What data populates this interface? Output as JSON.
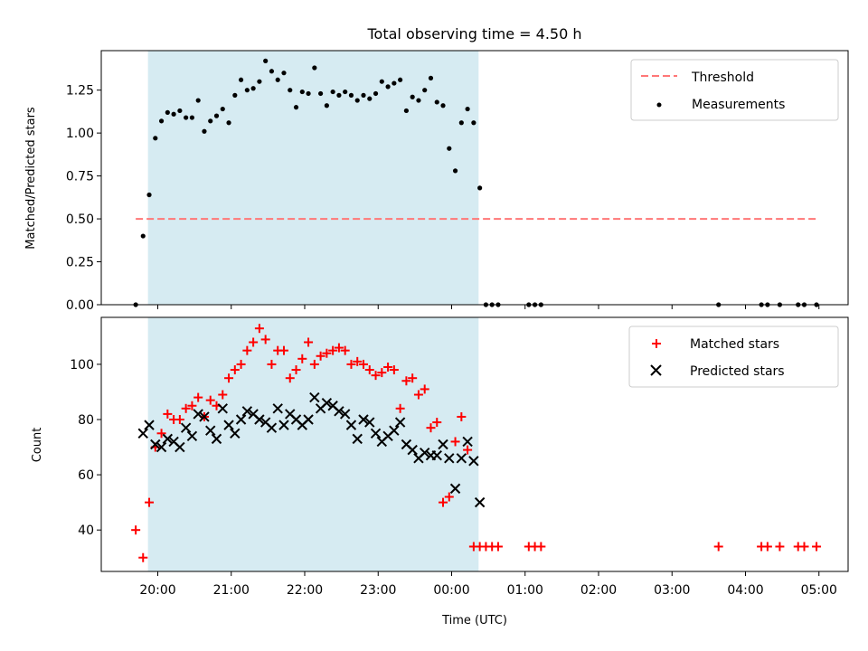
{
  "chart_data": [
    {
      "type": "scatter",
      "title": "Total observing time = 4.50 h",
      "ylabel": "Matched/Predicted stars",
      "ylim": [
        0,
        1.48
      ],
      "yticks": [
        0.0,
        0.25,
        0.5,
        0.75,
        1.0,
        1.25
      ],
      "ytick_labels": [
        "0.00",
        "0.25",
        "0.50",
        "0.75",
        "1.00",
        "1.25"
      ],
      "grid": false,
      "legend": {
        "placement": "top-right",
        "entries": [
          "Threshold",
          "Measurements"
        ]
      },
      "observing_window": {
        "start": "19:52",
        "end": "00:22",
        "color": "#add8e6"
      },
      "threshold": {
        "name": "Threshold",
        "value": 0.5,
        "x_start": "19:42",
        "x_end": "04:58",
        "color": "#ff7777",
        "style": "dashed"
      },
      "series": [
        {
          "name": "Measurements",
          "marker": "dot",
          "color": "#000000",
          "x": [
            "19:42",
            "19:48",
            "19:53",
            "19:58",
            "20:03",
            "20:08",
            "20:13",
            "20:18",
            "20:23",
            "20:28",
            "20:33",
            "20:38",
            "20:43",
            "20:48",
            "20:53",
            "20:58",
            "21:03",
            "21:08",
            "21:13",
            "21:18",
            "21:23",
            "21:28",
            "21:33",
            "21:38",
            "21:43",
            "21:48",
            "21:53",
            "21:58",
            "22:03",
            "22:08",
            "22:13",
            "22:18",
            "22:23",
            "22:28",
            "22:33",
            "22:38",
            "22:43",
            "22:48",
            "22:53",
            "22:58",
            "23:03",
            "23:08",
            "23:13",
            "23:18",
            "23:23",
            "23:28",
            "23:33",
            "23:38",
            "23:43",
            "23:48",
            "23:53",
            "23:58",
            "00:03",
            "00:08",
            "00:13",
            "00:18",
            "00:23",
            "00:28",
            "00:33",
            "00:38",
            "01:03",
            "01:08",
            "01:13",
            "03:38",
            "04:13",
            "04:18",
            "04:28",
            "04:43",
            "04:48",
            "04:58"
          ],
          "y": [
            0.0,
            0.4,
            0.64,
            0.97,
            1.07,
            1.12,
            1.11,
            1.13,
            1.09,
            1.09,
            1.19,
            1.01,
            1.07,
            1.1,
            1.14,
            1.06,
            1.22,
            1.31,
            1.25,
            1.26,
            1.3,
            1.42,
            1.36,
            1.31,
            1.35,
            1.25,
            1.15,
            1.24,
            1.23,
            1.38,
            1.23,
            1.16,
            1.24,
            1.22,
            1.24,
            1.22,
            1.19,
            1.22,
            1.2,
            1.23,
            1.3,
            1.27,
            1.29,
            1.31,
            1.13,
            1.21,
            1.19,
            1.25,
            1.32,
            1.18,
            1.16,
            0.91,
            0.78,
            1.06,
            1.14,
            1.06,
            0.68,
            0.0,
            0.0,
            0.0,
            0.0,
            0.0,
            0.0,
            0.0,
            0.0,
            0.0,
            0.0,
            0.0,
            0.0,
            0.0
          ]
        }
      ]
    },
    {
      "type": "scatter",
      "xlabel": "Time (UTC)",
      "ylabel": "Count",
      "ylim": [
        25,
        117
      ],
      "yticks": [
        40,
        60,
        80,
        100
      ],
      "ytick_labels": [
        "40",
        "60",
        "80",
        "100"
      ],
      "xticks": [
        "20:00",
        "21:00",
        "22:00",
        "23:00",
        "00:00",
        "01:00",
        "02:00",
        "03:00",
        "04:00",
        "05:00"
      ],
      "grid": false,
      "legend": {
        "placement": "top-right",
        "entries": [
          "Matched stars",
          "Predicted stars"
        ]
      },
      "observing_window": {
        "start": "19:52",
        "end": "00:22",
        "color": "#add8e6"
      },
      "series": [
        {
          "name": "Matched stars",
          "marker": "plus",
          "color": "#ff0000",
          "x": [
            "19:42",
            "19:48",
            "19:53",
            "19:58",
            "20:03",
            "20:08",
            "20:13",
            "20:18",
            "20:23",
            "20:28",
            "20:33",
            "20:38",
            "20:43",
            "20:48",
            "20:53",
            "20:58",
            "21:03",
            "21:08",
            "21:13",
            "21:18",
            "21:23",
            "21:28",
            "21:33",
            "21:38",
            "21:43",
            "21:48",
            "21:53",
            "21:58",
            "22:03",
            "22:08",
            "22:13",
            "22:18",
            "22:23",
            "22:28",
            "22:33",
            "22:38",
            "22:43",
            "22:48",
            "22:53",
            "22:58",
            "23:03",
            "23:08",
            "23:13",
            "23:18",
            "23:23",
            "23:28",
            "23:33",
            "23:38",
            "23:43",
            "23:48",
            "23:53",
            "23:58",
            "00:03",
            "00:08",
            "00:13",
            "00:18",
            "00:23",
            "00:28",
            "00:33",
            "00:38",
            "01:03",
            "01:08",
            "01:13",
            "03:38",
            "04:13",
            "04:18",
            "04:28",
            "04:43",
            "04:48",
            "04:58"
          ],
          "y": [
            40,
            30,
            50,
            70,
            75,
            82,
            80,
            80,
            84,
            85,
            88,
            81,
            87,
            85,
            89,
            95,
            98,
            100,
            105,
            108,
            113,
            109,
            100,
            105,
            105,
            95,
            98,
            102,
            108,
            100,
            103,
            104,
            105,
            106,
            105,
            100,
            101,
            100,
            98,
            96,
            97,
            99,
            98,
            84,
            94,
            95,
            89,
            91,
            77,
            79,
            50,
            52,
            72,
            81,
            69,
            34,
            34,
            34,
            34,
            34,
            34,
            34,
            34,
            34,
            34,
            34,
            34,
            34,
            34,
            34
          ]
        },
        {
          "name": "Predicted stars",
          "marker": "x",
          "color": "#000000",
          "x": [
            "19:48",
            "19:53",
            "19:58",
            "20:03",
            "20:08",
            "20:13",
            "20:18",
            "20:23",
            "20:28",
            "20:33",
            "20:38",
            "20:43",
            "20:48",
            "20:53",
            "20:58",
            "21:03",
            "21:08",
            "21:13",
            "21:18",
            "21:23",
            "21:28",
            "21:33",
            "21:38",
            "21:43",
            "21:48",
            "21:53",
            "21:58",
            "22:03",
            "22:08",
            "22:13",
            "22:18",
            "22:23",
            "22:28",
            "22:33",
            "22:38",
            "22:43",
            "22:48",
            "22:53",
            "22:58",
            "23:03",
            "23:08",
            "23:13",
            "23:18",
            "23:23",
            "23:28",
            "23:33",
            "23:38",
            "23:43",
            "23:48",
            "23:53",
            "23:58",
            "00:03",
            "00:08",
            "00:13",
            "00:18",
            "00:23"
          ],
          "y": [
            75,
            78,
            71,
            70,
            73,
            72,
            70,
            77,
            74,
            82,
            81,
            76,
            73,
            84,
            78,
            75,
            80,
            83,
            82,
            80,
            79,
            77,
            84,
            78,
            82,
            80,
            78,
            80,
            88,
            84,
            86,
            85,
            83,
            82,
            78,
            73,
            80,
            79,
            75,
            72,
            74,
            76,
            79,
            71,
            69,
            66,
            68,
            67,
            67,
            71,
            66,
            55,
            66,
            72,
            65,
            50
          ]
        }
      ]
    }
  ]
}
